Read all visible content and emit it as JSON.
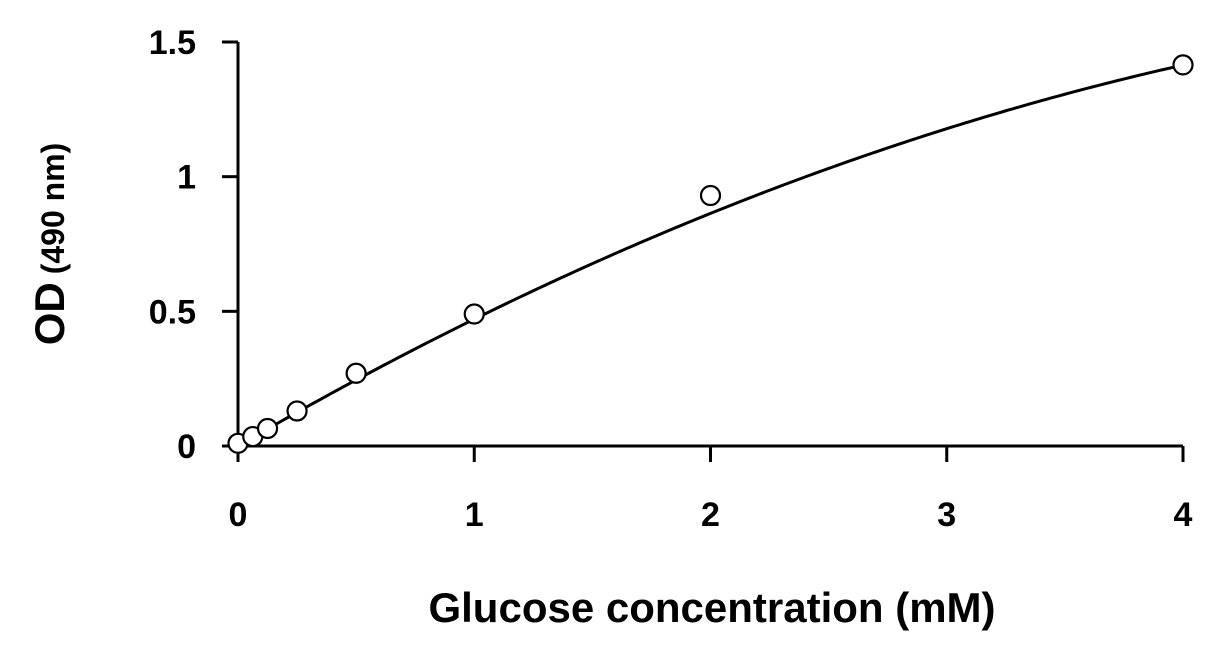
{
  "chart_data": {
    "type": "scatter",
    "xlabel": "Glucose concentration (mM)",
    "ylabel_main": "OD",
    "ylabel_unit": "(490 nm)",
    "xlim": [
      0,
      4
    ],
    "ylim": [
      0,
      1.5
    ],
    "x_ticks": [
      0,
      1,
      2,
      3,
      4
    ],
    "x_tick_labels": [
      "0",
      "1",
      "2",
      "3",
      "4"
    ],
    "y_ticks": [
      0,
      0.5,
      1,
      1.5
    ],
    "y_tick_labels": [
      "0",
      "0.5",
      "1",
      "1.5"
    ],
    "grid": false,
    "legend": "none",
    "points": [
      {
        "x": 0,
        "y": 0.01
      },
      {
        "x": 0.0625,
        "y": 0.035
      },
      {
        "x": 0.125,
        "y": 0.065
      },
      {
        "x": 0.25,
        "y": 0.13
      },
      {
        "x": 0.5,
        "y": 0.27
      },
      {
        "x": 1,
        "y": 0.49
      },
      {
        "x": 2,
        "y": 0.93
      },
      {
        "x": 4,
        "y": 1.415
      }
    ],
    "fit_curve": {
      "type": "polynomial",
      "coefficients": [
        0,
        0.51,
        -0.0391
      ]
    },
    "colors": {
      "axis": "#000000",
      "marker_edge": "#000000",
      "marker_fill": "#ffffff",
      "curve": "#000000"
    }
  }
}
